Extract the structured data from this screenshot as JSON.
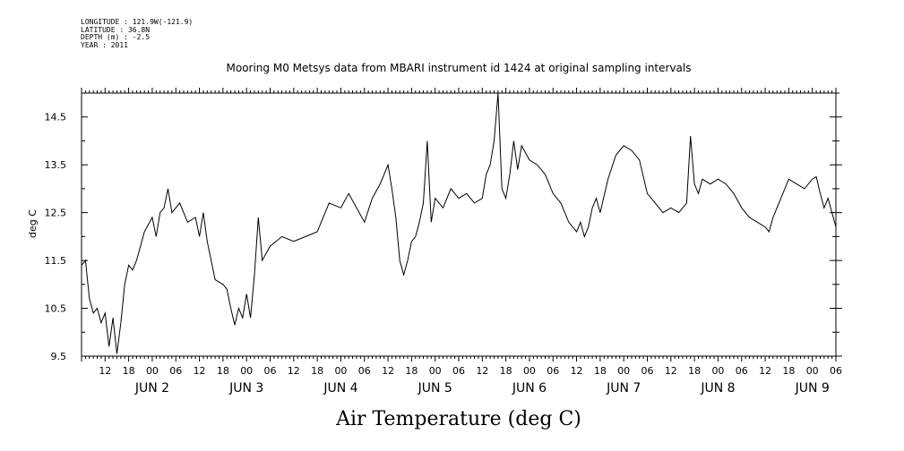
{
  "header": {
    "longitude": "LONGITUDE : 121.9W(-121.9)",
    "latitude": "LATITUDE : 36.8N",
    "depth": "DEPTH (m) : -2.5",
    "year": "YEAR : 2011"
  },
  "chart_data": {
    "type": "line",
    "title": "Mooring M0 Metsys data from MBARI instrument id 1424 at original sampling intervals",
    "xlabel": "Air Temperature (deg C)",
    "ylabel": "deg C",
    "ylim": [
      9.5,
      15.0
    ],
    "yticks": [
      "9.5",
      "10.5",
      "11.5",
      "12.5",
      "13.5",
      "14.5"
    ],
    "xlim": [
      "2011-06-01T06:00",
      "2011-06-09T06:00"
    ],
    "hour_ticks": [
      "12",
      "18",
      "00",
      "06",
      "12",
      "18",
      "00",
      "06",
      "12",
      "18",
      "00",
      "06",
      "12",
      "18",
      "00",
      "06",
      "12",
      "18",
      "00",
      "06",
      "12",
      "18",
      "00",
      "06",
      "12",
      "18",
      "00",
      "06",
      "12",
      "18",
      "00",
      "06"
    ],
    "day_labels": [
      "JUN 2",
      "JUN 3",
      "JUN 4",
      "JUN 5",
      "JUN 6",
      "JUN 7",
      "JUN 8",
      "JUN 9"
    ],
    "grid": false,
    "series": [
      {
        "values": [
          [
            "2011-06-01T06:00",
            11.4
          ],
          [
            "2011-06-01T07:00",
            11.5
          ],
          [
            "2011-06-01T08:00",
            10.7
          ],
          [
            "2011-06-01T09:00",
            10.4
          ],
          [
            "2011-06-01T10:00",
            10.5
          ],
          [
            "2011-06-01T11:00",
            10.2
          ],
          [
            "2011-06-01T12:00",
            10.4
          ],
          [
            "2011-06-01T13:00",
            9.7
          ],
          [
            "2011-06-01T14:00",
            10.3
          ],
          [
            "2011-06-01T15:00",
            9.55
          ],
          [
            "2011-06-01T16:00",
            10.2
          ],
          [
            "2011-06-01T17:00",
            11.0
          ],
          [
            "2011-06-01T18:00",
            11.4
          ],
          [
            "2011-06-01T19:00",
            11.3
          ],
          [
            "2011-06-01T20:00",
            11.5
          ],
          [
            "2011-06-01T22:00",
            12.1
          ],
          [
            "2011-06-02T00:00",
            12.4
          ],
          [
            "2011-06-02T01:00",
            12.0
          ],
          [
            "2011-06-02T02:00",
            12.5
          ],
          [
            "2011-06-02T03:00",
            12.6
          ],
          [
            "2011-06-02T04:00",
            13.0
          ],
          [
            "2011-06-02T05:00",
            12.5
          ],
          [
            "2011-06-02T07:00",
            12.7
          ],
          [
            "2011-06-02T09:00",
            12.3
          ],
          [
            "2011-06-02T11:00",
            12.4
          ],
          [
            "2011-06-02T12:00",
            12.0
          ],
          [
            "2011-06-02T13:00",
            12.5
          ],
          [
            "2011-06-02T14:00",
            11.9
          ],
          [
            "2011-06-02T15:00",
            11.5
          ],
          [
            "2011-06-02T16:00",
            11.1
          ],
          [
            "2011-06-02T18:00",
            11.0
          ],
          [
            "2011-06-02T19:00",
            10.9
          ],
          [
            "2011-06-02T20:00",
            10.5
          ],
          [
            "2011-06-02T21:00",
            10.15
          ],
          [
            "2011-06-02T22:00",
            10.5
          ],
          [
            "2011-06-02T23:00",
            10.3
          ],
          [
            "2011-06-03T00:00",
            10.8
          ],
          [
            "2011-06-03T01:00",
            10.3
          ],
          [
            "2011-06-03T02:00",
            11.2
          ],
          [
            "2011-06-03T03:00",
            12.4
          ],
          [
            "2011-06-03T04:00",
            11.5
          ],
          [
            "2011-06-03T06:00",
            11.8
          ],
          [
            "2011-06-03T09:00",
            12.0
          ],
          [
            "2011-06-03T12:00",
            11.9
          ],
          [
            "2011-06-03T15:00",
            12.0
          ],
          [
            "2011-06-03T18:00",
            12.1
          ],
          [
            "2011-06-03T21:00",
            12.7
          ],
          [
            "2011-06-04T00:00",
            12.6
          ],
          [
            "2011-06-04T02:00",
            12.9
          ],
          [
            "2011-06-04T04:00",
            12.6
          ],
          [
            "2011-06-04T06:00",
            12.3
          ],
          [
            "2011-06-04T08:00",
            12.8
          ],
          [
            "2011-06-04T10:00",
            13.1
          ],
          [
            "2011-06-04T12:00",
            13.5
          ],
          [
            "2011-06-04T13:00",
            13.0
          ],
          [
            "2011-06-04T14:00",
            12.4
          ],
          [
            "2011-06-04T15:00",
            11.5
          ],
          [
            "2011-06-04T16:00",
            11.2
          ],
          [
            "2011-06-04T17:00",
            11.5
          ],
          [
            "2011-06-04T18:00",
            11.9
          ],
          [
            "2011-06-04T19:00",
            12.0
          ],
          [
            "2011-06-04T20:00",
            12.3
          ],
          [
            "2011-06-04T21:00",
            12.7
          ],
          [
            "2011-06-04T22:00",
            14.0
          ],
          [
            "2011-06-04T23:00",
            12.3
          ],
          [
            "2011-06-05T00:00",
            12.8
          ],
          [
            "2011-06-05T02:00",
            12.6
          ],
          [
            "2011-06-05T04:00",
            13.0
          ],
          [
            "2011-06-05T06:00",
            12.8
          ],
          [
            "2011-06-05T08:00",
            12.9
          ],
          [
            "2011-06-05T10:00",
            12.7
          ],
          [
            "2011-06-05T12:00",
            12.8
          ],
          [
            "2011-06-05T13:00",
            13.3
          ],
          [
            "2011-06-05T14:00",
            13.5
          ],
          [
            "2011-06-05T15:00",
            14.0
          ],
          [
            "2011-06-05T16:00",
            15.0
          ],
          [
            "2011-06-05T17:00",
            13.0
          ],
          [
            "2011-06-05T18:00",
            12.8
          ],
          [
            "2011-06-05T19:00",
            13.3
          ],
          [
            "2011-06-05T20:00",
            14.0
          ],
          [
            "2011-06-05T21:00",
            13.4
          ],
          [
            "2011-06-05T22:00",
            13.9
          ],
          [
            "2011-06-06T00:00",
            13.6
          ],
          [
            "2011-06-06T02:00",
            13.5
          ],
          [
            "2011-06-06T04:00",
            13.3
          ],
          [
            "2011-06-06T06:00",
            12.9
          ],
          [
            "2011-06-06T08:00",
            12.7
          ],
          [
            "2011-06-06T10:00",
            12.3
          ],
          [
            "2011-06-06T12:00",
            12.1
          ],
          [
            "2011-06-06T13:00",
            12.3
          ],
          [
            "2011-06-06T14:00",
            12.0
          ],
          [
            "2011-06-06T15:00",
            12.2
          ],
          [
            "2011-06-06T16:00",
            12.6
          ],
          [
            "2011-06-06T17:00",
            12.8
          ],
          [
            "2011-06-06T18:00",
            12.5
          ],
          [
            "2011-06-06T20:00",
            13.2
          ],
          [
            "2011-06-06T22:00",
            13.7
          ],
          [
            "2011-06-07T00:00",
            13.9
          ],
          [
            "2011-06-07T02:00",
            13.8
          ],
          [
            "2011-06-07T04:00",
            13.6
          ],
          [
            "2011-06-07T06:00",
            12.9
          ],
          [
            "2011-06-07T08:00",
            12.7
          ],
          [
            "2011-06-07T10:00",
            12.5
          ],
          [
            "2011-06-07T12:00",
            12.6
          ],
          [
            "2011-06-07T14:00",
            12.5
          ],
          [
            "2011-06-07T16:00",
            12.7
          ],
          [
            "2011-06-07T17:00",
            14.1
          ],
          [
            "2011-06-07T18:00",
            13.1
          ],
          [
            "2011-06-07T19:00",
            12.9
          ],
          [
            "2011-06-07T20:00",
            13.2
          ],
          [
            "2011-06-07T22:00",
            13.1
          ],
          [
            "2011-06-08T00:00",
            13.2
          ],
          [
            "2011-06-08T02:00",
            13.1
          ],
          [
            "2011-06-08T04:00",
            12.9
          ],
          [
            "2011-06-08T06:00",
            12.6
          ],
          [
            "2011-06-08T08:00",
            12.4
          ],
          [
            "2011-06-08T10:00",
            12.3
          ],
          [
            "2011-06-08T12:00",
            12.2
          ],
          [
            "2011-06-08T13:00",
            12.1
          ],
          [
            "2011-06-08T14:00",
            12.4
          ],
          [
            "2011-06-08T16:00",
            12.8
          ],
          [
            "2011-06-08T18:00",
            13.2
          ],
          [
            "2011-06-08T20:00",
            13.1
          ],
          [
            "2011-06-08T22:00",
            13.0
          ],
          [
            "2011-06-09T00:00",
            13.2
          ],
          [
            "2011-06-09T01:00",
            13.25
          ],
          [
            "2011-06-09T02:00",
            12.9
          ],
          [
            "2011-06-09T03:00",
            12.6
          ],
          [
            "2011-06-09T04:00",
            12.8
          ],
          [
            "2011-06-09T05:00",
            12.5
          ],
          [
            "2011-06-09T06:00",
            12.2
          ]
        ]
      }
    ]
  }
}
